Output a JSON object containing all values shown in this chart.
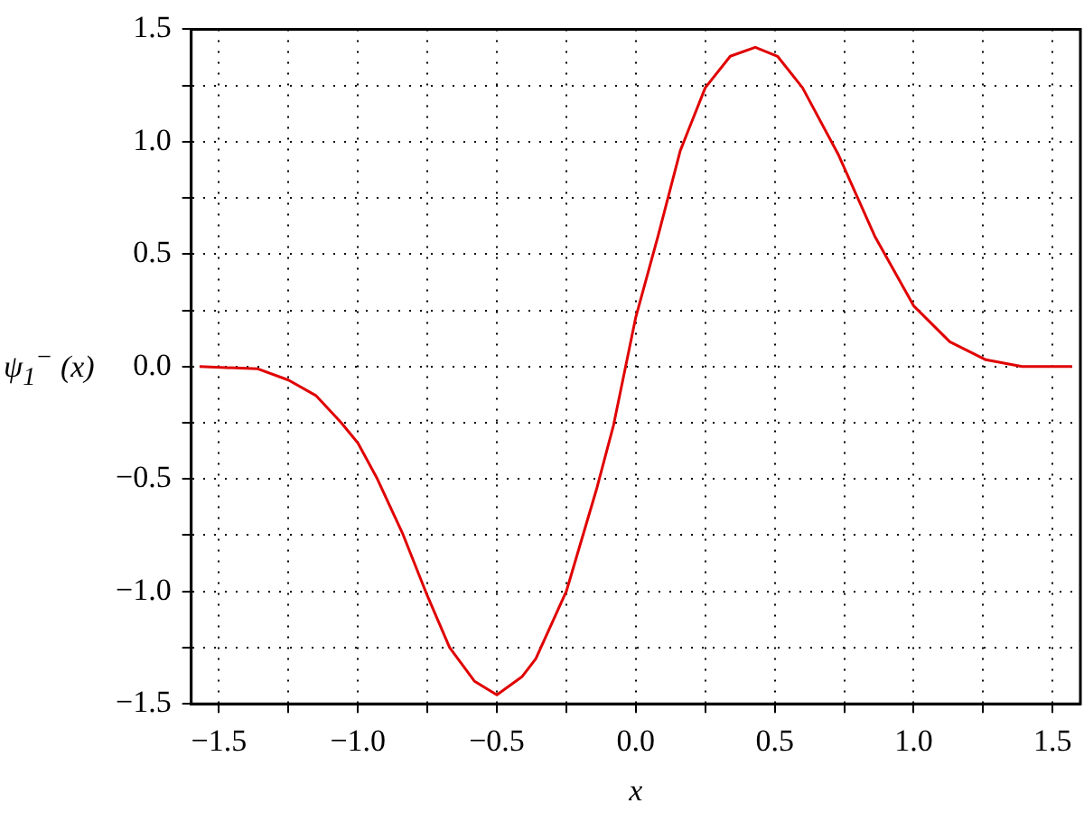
{
  "chart_data": {
    "type": "line",
    "xlabel": "x",
    "ylabel": "ψ$_{1}$$^{−}$ (x)",
    "x": [
      -1.57,
      -1.36,
      -1.25,
      -1.15,
      -1.06,
      -1.0,
      -0.93,
      -0.84,
      -0.75,
      -0.67,
      -0.58,
      -0.5,
      -0.41,
      -0.36,
      -0.25,
      -0.14,
      -0.08,
      0.0,
      0.08,
      0.16,
      0.25,
      0.34,
      0.43,
      0.51,
      0.6,
      0.73,
      0.86,
      1.0,
      1.13,
      1.26,
      1.39,
      1.57
    ],
    "series": [
      {
        "color": "#e00000",
        "values": [
          0,
          -0.01,
          -0.06,
          -0.13,
          -0.25,
          -0.34,
          -0.5,
          -0.74,
          -1.02,
          -1.25,
          -1.4,
          -1.46,
          -1.38,
          -1.3,
          -1.0,
          -0.54,
          -0.26,
          0.22,
          0.58,
          0.96,
          1.24,
          1.38,
          1.42,
          1.38,
          1.24,
          0.94,
          0.58,
          0.27,
          0.11,
          0.03,
          0,
          0
        ]
      }
    ],
    "xlim": [
      -1.6,
      1.6
    ],
    "xticks": [
      {
        "value": -1.5,
        "label": "−1.5"
      },
      {
        "value": -1.25,
        "label": null
      },
      {
        "value": -1,
        "label": "−1.0"
      },
      {
        "value": -0.75,
        "label": null
      },
      {
        "value": -0.5,
        "label": "−0.5"
      },
      {
        "value": -0.25,
        "label": null
      },
      {
        "value": 0,
        "label": "0.0"
      },
      {
        "value": 0.25,
        "label": null
      },
      {
        "value": 0.5,
        "label": "0.5"
      },
      {
        "value": 0.75,
        "label": null
      },
      {
        "value": 1,
        "label": "1.0"
      },
      {
        "value": 1.25,
        "label": null
      },
      {
        "value": 1.5,
        "label": "1.5"
      }
    ],
    "ylim": [
      -1.5,
      1.5
    ],
    "yticks": [
      {
        "value": -1.5,
        "label": "−1.5"
      },
      {
        "value": -1.25,
        "label": null
      },
      {
        "value": -1,
        "label": "−1.0"
      },
      {
        "value": -0.75,
        "label": null
      },
      {
        "value": -0.5,
        "label": "−0.5"
      },
      {
        "value": -0.25,
        "label": null
      },
      {
        "value": 0,
        "label": "0.0"
      },
      {
        "value": 0.25,
        "label": null
      },
      {
        "value": 0.5,
        "label": "0.5"
      },
      {
        "value": 0.75,
        "label": null
      },
      {
        "value": 1,
        "label": "1.0"
      },
      {
        "value": 1.25,
        "label": null
      },
      {
        "value": 1.5,
        "label": "1.5"
      }
    ],
    "grid": true,
    "legend": false,
    "marker": "none",
    "line_style": "solid"
  }
}
